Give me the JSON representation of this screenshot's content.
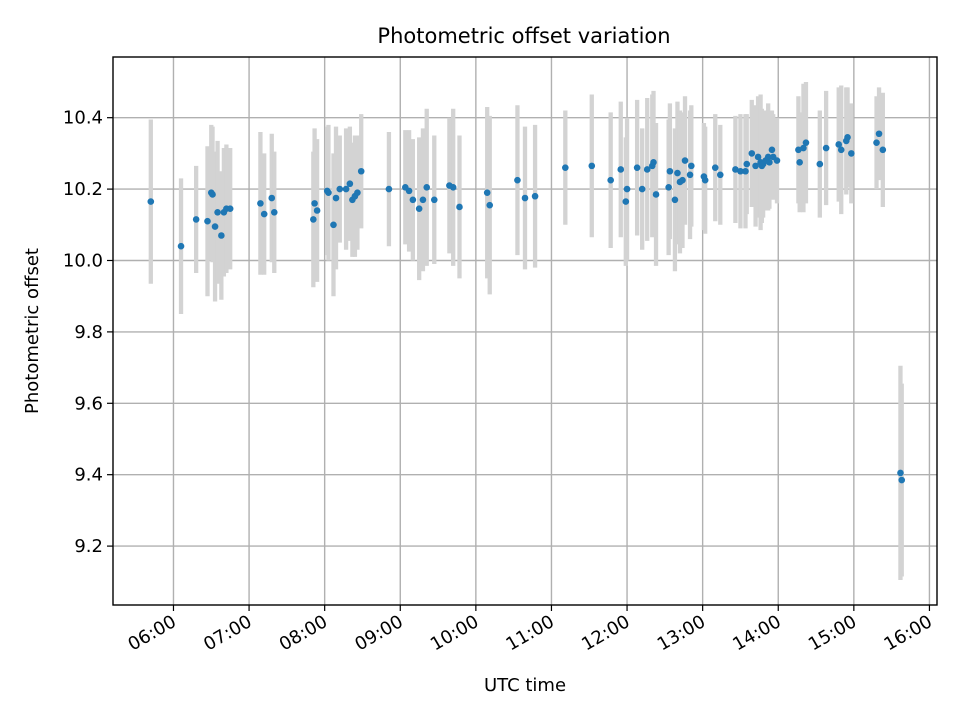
{
  "chart_data": {
    "type": "scatter",
    "title": "Photometric offset variation",
    "xlabel": "UTC time",
    "ylabel": "Photometric offset",
    "xlim": [
      "05:12",
      "16:06"
    ],
    "ylim": [
      9.035,
      10.57
    ],
    "grid": true,
    "legend": "none",
    "x_ticks": [
      "06:00",
      "07:00",
      "08:00",
      "09:00",
      "10:00",
      "11:00",
      "12:00",
      "13:00",
      "14:00",
      "15:00",
      "16:00"
    ],
    "y_ticks": [
      "9.2",
      "9.4",
      "9.6",
      "9.8",
      "10.0",
      "10.2",
      "10.4"
    ],
    "colors": {
      "point": "#1f77b4",
      "error_bar": "#d3d3d3"
    },
    "series": [
      {
        "x": [
          "05:42",
          "06:06",
          "06:18",
          "06:27",
          "06:30",
          "06:31",
          "06:33",
          "06:35",
          "06:38",
          "06:40",
          "06:42",
          "06:45",
          "07:09",
          "07:12",
          "07:18",
          "07:20",
          "07:51",
          "07:52",
          "07:54",
          "08:02",
          "08:03",
          "08:07",
          "08:09",
          "08:12",
          "08:17",
          "08:20",
          "08:22",
          "08:24",
          "08:26",
          "08:29",
          "08:51",
          "09:04",
          "09:07",
          "09:10",
          "09:15",
          "09:18",
          "09:21",
          "09:27",
          "09:39",
          "09:42",
          "09:47",
          "10:09",
          "10:11",
          "10:33",
          "10:39",
          "10:47",
          "11:11",
          "11:32",
          "11:47",
          "11:55",
          "11:59",
          "12:00",
          "12:08",
          "12:12",
          "12:16",
          "12:20",
          "12:21",
          "12:23",
          "12:33",
          "12:34",
          "12:38",
          "12:40",
          "12:42",
          "12:44",
          "12:46",
          "12:50",
          "12:51",
          "13:01",
          "13:02",
          "13:10",
          "13:14",
          "13:26",
          "13:30",
          "13:34",
          "13:35",
          "13:39",
          "13:42",
          "13:44",
          "13:46",
          "13:47",
          "13:48",
          "13:50",
          "13:52",
          "13:53",
          "13:55",
          "13:56",
          "13:59",
          "14:16",
          "14:17",
          "14:20",
          "14:22",
          "14:33",
          "14:38",
          "14:48",
          "14:50",
          "14:54",
          "14:55",
          "14:58",
          "15:18",
          "15:20",
          "15:23",
          "15:37",
          "15:38"
        ],
        "y": [
          10.165,
          10.04,
          10.115,
          10.11,
          10.19,
          10.185,
          10.095,
          10.135,
          10.07,
          10.135,
          10.145,
          10.145,
          10.16,
          10.13,
          10.175,
          10.135,
          10.115,
          10.16,
          10.14,
          10.195,
          10.19,
          10.1,
          10.175,
          10.2,
          10.2,
          10.215,
          10.17,
          10.18,
          10.19,
          10.25,
          10.2,
          10.205,
          10.195,
          10.17,
          10.145,
          10.17,
          10.205,
          10.17,
          10.21,
          10.205,
          10.15,
          10.19,
          10.155,
          10.225,
          10.175,
          10.18,
          10.26,
          10.265,
          10.225,
          10.255,
          10.165,
          10.2,
          10.26,
          10.2,
          10.255,
          10.265,
          10.275,
          10.185,
          10.205,
          10.25,
          10.17,
          10.245,
          10.22,
          10.225,
          10.28,
          10.24,
          10.265,
          10.235,
          10.225,
          10.26,
          10.24,
          10.255,
          10.25,
          10.25,
          10.27,
          10.3,
          10.265,
          10.29,
          10.275,
          10.265,
          10.27,
          10.28,
          10.29,
          10.275,
          10.31,
          10.29,
          10.28,
          10.31,
          10.275,
          10.315,
          10.33,
          10.27,
          10.315,
          10.325,
          10.31,
          10.335,
          10.345,
          10.3,
          10.33,
          10.355,
          10.31,
          9.405,
          9.385
        ],
        "err": [
          0.23,
          0.19,
          0.15,
          0.21,
          0.19,
          0.19,
          0.21,
          0.2,
          0.18,
          0.18,
          0.18,
          0.17,
          0.2,
          0.17,
          0.18,
          0.17,
          0.19,
          0.21,
          0.2,
          0.18,
          0.19,
          0.2,
          0.2,
          0.15,
          0.17,
          0.16,
          0.16,
          0.17,
          0.16,
          0.16,
          0.16,
          0.16,
          0.17,
          0.17,
          0.2,
          0.2,
          0.22,
          0.18,
          0.19,
          0.22,
          0.2,
          0.24,
          0.25,
          0.21,
          0.2,
          0.2,
          0.16,
          0.2,
          0.19,
          0.19,
          0.18,
          0.2,
          0.19,
          0.17,
          0.2,
          0.2,
          0.2,
          0.2,
          0.19,
          0.19,
          0.2,
          0.2,
          0.2,
          0.19,
          0.18,
          0.18,
          0.17,
          0.15,
          0.15,
          0.15,
          0.14,
          0.15,
          0.16,
          0.16,
          0.14,
          0.15,
          0.17,
          0.17,
          0.19,
          0.16,
          0.15,
          0.14,
          0.15,
          0.13,
          0.11,
          0.12,
          0.12,
          0.15,
          0.14,
          0.18,
          0.17,
          0.15,
          0.16,
          0.16,
          0.18,
          0.15,
          0.14,
          0.14,
          0.13,
          0.13,
          0.16,
          0.3,
          0.27
        ]
      }
    ]
  }
}
